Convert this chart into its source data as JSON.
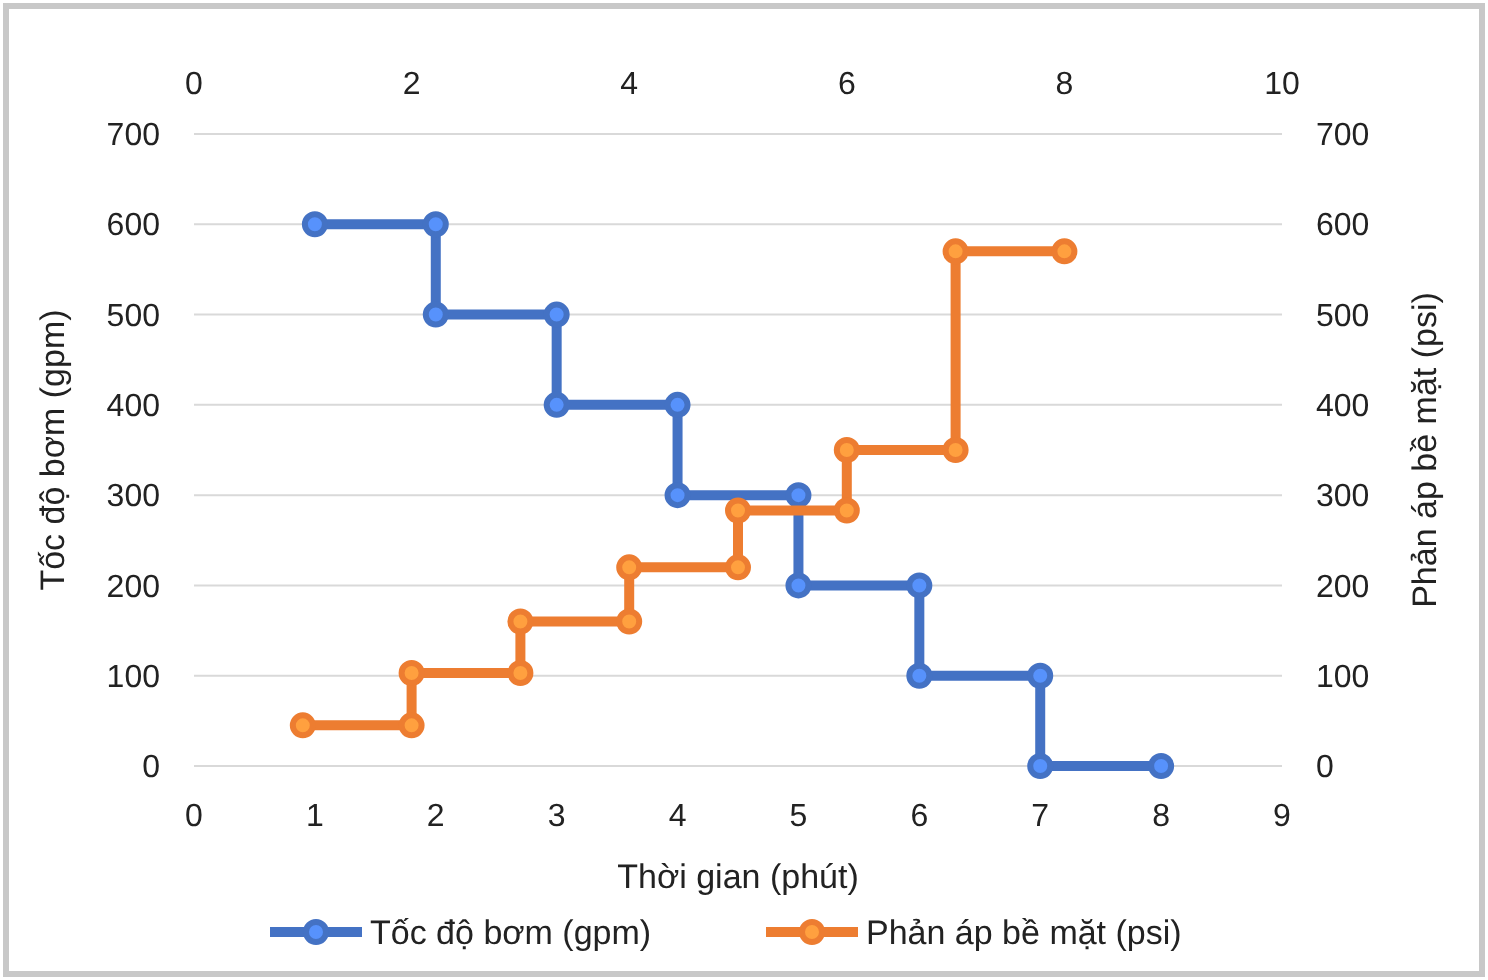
{
  "chart_data": {
    "type": "line",
    "xlabel": "Thời gian (phút)",
    "ylabel": "Tốc độ bơm (gpm)",
    "y2label": "Phản áp bề mặt (psi)",
    "xlim": [
      0,
      9
    ],
    "xticks": [
      0,
      1,
      2,
      3,
      4,
      5,
      6,
      7,
      8,
      9
    ],
    "x2lim": [
      0,
      10
    ],
    "x2ticks": [
      0,
      2,
      4,
      6,
      8,
      10
    ],
    "ylim": [
      0,
      700
    ],
    "yticks": [
      0,
      100,
      200,
      300,
      400,
      500,
      600,
      700
    ],
    "y2lim": [
      0,
      700
    ],
    "y2ticks": [
      0,
      100,
      200,
      300,
      400,
      500,
      600,
      700
    ],
    "grid": "y",
    "legend": "bottom",
    "marker": "circle",
    "line_style": "solid",
    "series": [
      {
        "name": "Tốc độ bơm  (gpm)",
        "color": "#4472c4",
        "x": [
          1,
          2,
          2,
          3,
          3,
          4,
          4,
          5,
          5,
          6,
          6,
          7,
          7,
          8
        ],
        "values": [
          600,
          600,
          500,
          500,
          400,
          400,
          300,
          300,
          200,
          200,
          100,
          100,
          0,
          0
        ]
      },
      {
        "name": "Phản áp bề mặt (psi)",
        "color": "#ed7d31",
        "x": [
          0.9,
          1.8,
          1.8,
          2.7,
          2.7,
          3.6,
          3.6,
          4.5,
          4.5,
          5.4,
          5.4,
          6.3,
          6.3,
          7.2
        ],
        "values": [
          45,
          45,
          103,
          103,
          160,
          160,
          220,
          220,
          283,
          283,
          350,
          350,
          570,
          570
        ]
      }
    ]
  }
}
